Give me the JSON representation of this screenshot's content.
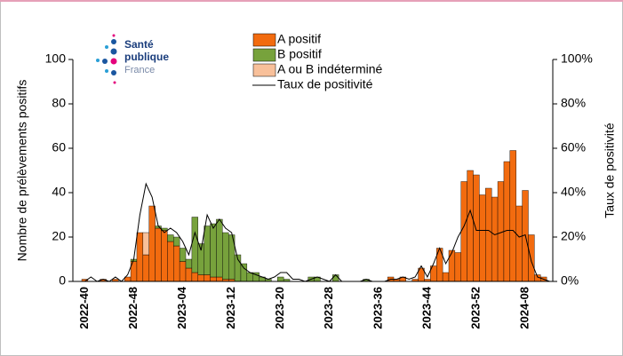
{
  "logo": [
    "Santé",
    "publique",
    "France"
  ],
  "chart_data": {
    "type": "bar",
    "y_label": "Nombre de prélèvements positifs",
    "y2_label": "Taux de positivité",
    "stacked": true,
    "categories": [
      "2022-40",
      null,
      null,
      null,
      null,
      null,
      null,
      null,
      "2022-48",
      null,
      null,
      null,
      null,
      null,
      null,
      null,
      "2023-04",
      null,
      null,
      null,
      null,
      null,
      null,
      null,
      "2023-12",
      null,
      null,
      null,
      null,
      null,
      null,
      null,
      "2023-20",
      null,
      null,
      null,
      null,
      null,
      null,
      null,
      "2023-28",
      null,
      null,
      null,
      null,
      null,
      null,
      null,
      "2023-36",
      null,
      null,
      null,
      null,
      null,
      null,
      null,
      "2023-44",
      null,
      null,
      null,
      null,
      null,
      null,
      null,
      "2023-52",
      null,
      null,
      null,
      null,
      null,
      null,
      null,
      "2024-08",
      null,
      null,
      null,
      null
    ],
    "series": [
      {
        "name": "A positif",
        "color": "#f26b0f",
        "values": [
          1,
          0,
          0,
          1,
          0,
          1,
          0,
          2,
          9,
          22,
          12,
          34,
          24,
          23,
          18,
          16,
          9,
          6,
          4,
          3,
          3,
          2,
          2,
          1,
          1,
          0,
          0,
          0,
          0,
          0,
          0,
          0,
          0,
          0,
          0,
          0,
          0,
          0,
          0,
          0,
          0,
          0,
          0,
          0,
          0,
          0,
          0,
          0,
          0,
          0,
          2,
          1,
          2,
          0,
          1,
          6,
          1,
          7,
          15,
          4,
          14,
          13,
          45,
          50,
          48,
          39,
          42,
          38,
          45,
          54,
          59,
          34,
          41,
          21,
          3,
          2,
          0
        ]
      },
      {
        "name": "B positif",
        "color": "#77a23c",
        "values": [
          0,
          0,
          0,
          0,
          0,
          0,
          0,
          0,
          1,
          0,
          0,
          0,
          1,
          1,
          3,
          4,
          6,
          4,
          25,
          14,
          22,
          24,
          26,
          21,
          20,
          12,
          8,
          4,
          4,
          2,
          1,
          0,
          2,
          1,
          0,
          0,
          0,
          2,
          2,
          0,
          0,
          3,
          0,
          0,
          0,
          0,
          1,
          0,
          0,
          0,
          0,
          0,
          0,
          0,
          0,
          0,
          0,
          0,
          0,
          0,
          0,
          0,
          0,
          0,
          0,
          0,
          0,
          0,
          0,
          0,
          0,
          0,
          0,
          0,
          0,
          0,
          0
        ]
      },
      {
        "name": "A ou B indéterminé",
        "color": "#f8c09a",
        "values": [
          0,
          0,
          0,
          0,
          0,
          0,
          0,
          0,
          0,
          0,
          10,
          0,
          0,
          0,
          0,
          0,
          0,
          0,
          0,
          0,
          0,
          0,
          0,
          0,
          0,
          0,
          0,
          0,
          0,
          0,
          0,
          0,
          0,
          0,
          0,
          0,
          0,
          0,
          0,
          0,
          0,
          0,
          0,
          0,
          0,
          0,
          0,
          0,
          0,
          0,
          0,
          0,
          0,
          0,
          0,
          0,
          0,
          0,
          0,
          0,
          0,
          0,
          0,
          0,
          0,
          0,
          0,
          0,
          0,
          0,
          0,
          0,
          0,
          0,
          0,
          0,
          0
        ]
      },
      {
        "name": "Taux de positivité",
        "type": "line",
        "axis": "y2",
        "color": "#000000",
        "values": [
          0,
          2,
          0,
          1,
          0,
          2,
          0,
          3,
          10,
          30,
          44,
          38,
          25,
          22,
          24,
          22,
          18,
          12,
          22,
          14,
          30,
          24,
          28,
          24,
          22,
          10,
          6,
          4,
          3,
          2,
          1,
          2,
          4,
          4,
          1,
          1,
          0,
          1,
          2,
          1,
          0,
          3,
          0,
          0,
          0,
          0,
          1,
          0,
          0,
          0,
          1,
          1,
          2,
          1,
          2,
          7,
          2,
          8,
          15,
          8,
          13,
          20,
          25,
          32,
          23,
          23,
          23,
          21,
          22,
          23,
          23,
          20,
          21,
          9,
          2,
          1,
          0
        ]
      }
    ],
    "ylim": [
      0,
      100
    ],
    "yticks": [
      0,
      20,
      40,
      60,
      80,
      100
    ],
    "y2lim": [
      0,
      100
    ],
    "y2ticks": [
      {
        "value": 0,
        "label": "0%"
      },
      {
        "value": 20,
        "label": "20%"
      },
      {
        "value": 40,
        "label": "40%"
      },
      {
        "value": 60,
        "label": "60%"
      },
      {
        "value": 80,
        "label": "80%"
      },
      {
        "value": 100,
        "label": "100%"
      }
    ],
    "legend": "top"
  }
}
